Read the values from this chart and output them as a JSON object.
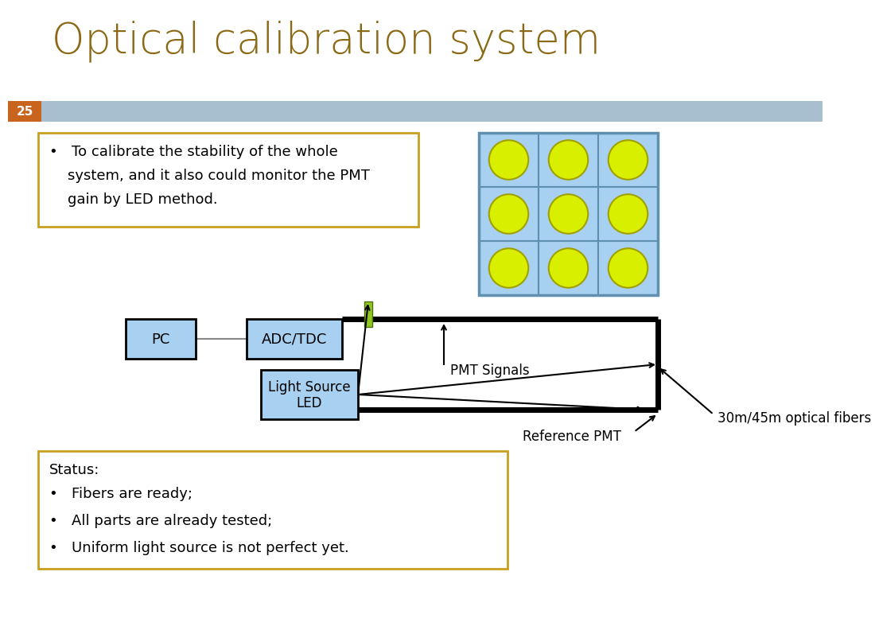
{
  "title": "Optical calibration system",
  "title_color": "#8b6914",
  "title_fontsize": 38,
  "bg_color": "#ffffff",
  "slide_number": "25",
  "slide_number_bg": "#c8641e",
  "header_bar_color": "#a8bfd0",
  "bullet_box_text_line1": "•   To calibrate the stability of the whole",
  "bullet_box_text_line2": "    system, and it also could monitor the PMT",
  "bullet_box_text_line3": "    gain by LED method.",
  "bullet_box_border": "#c8a020",
  "status_box_title": "Status:",
  "status_box_lines": [
    "•   Fibers are ready;",
    "•   All parts are already tested;",
    "•   Uniform light source is not perfect yet."
  ],
  "status_box_border": "#c8a020",
  "pmt_grid_color": "#a8d0f0",
  "pmt_circle_color": "#d8f000",
  "pmt_circle_edge": "#a0a000",
  "box_fill": "#a8d0f0",
  "box_edge": "#000000",
  "pc_label": "PC",
  "adctdc_label": "ADC/TDC",
  "lightsource_label": "Light Source\nLED",
  "label_pmt_signals": "PMT Signals",
  "label_ref_pmt": "Reference PMT",
  "label_optical_fibers": "30m/45m optical fibers",
  "green_rect_color": "#90c820",
  "green_rect_edge": "#507010"
}
